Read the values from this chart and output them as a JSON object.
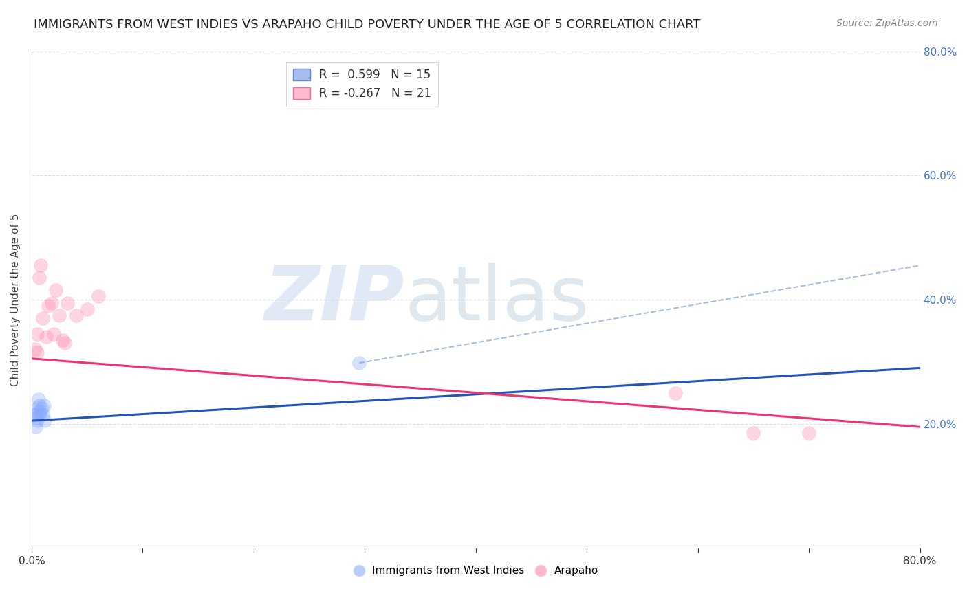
{
  "title": "IMMIGRANTS FROM WEST INDIES VS ARAPAHO CHILD POVERTY UNDER THE AGE OF 5 CORRELATION CHART",
  "source": "Source: ZipAtlas.com",
  "ylabel": "Child Poverty Under the Age of 5",
  "xlim": [
    0,
    0.8
  ],
  "ylim": [
    0,
    0.8
  ],
  "background_color": "#ffffff",
  "blue_scatter_x": [
    0.003,
    0.004,
    0.005,
    0.005,
    0.005,
    0.006,
    0.006,
    0.007,
    0.007,
    0.008,
    0.009,
    0.01,
    0.011,
    0.012,
    0.295
  ],
  "blue_scatter_y": [
    0.215,
    0.195,
    0.21,
    0.225,
    0.205,
    0.22,
    0.24,
    0.23,
    0.215,
    0.22,
    0.225,
    0.215,
    0.23,
    0.205,
    0.298
  ],
  "pink_scatter_x": [
    0.003,
    0.005,
    0.005,
    0.007,
    0.008,
    0.01,
    0.013,
    0.015,
    0.018,
    0.02,
    0.022,
    0.025,
    0.028,
    0.03,
    0.032,
    0.04,
    0.05,
    0.06,
    0.58,
    0.65,
    0.7
  ],
  "pink_scatter_y": [
    0.32,
    0.315,
    0.345,
    0.435,
    0.455,
    0.37,
    0.34,
    0.39,
    0.395,
    0.345,
    0.415,
    0.375,
    0.335,
    0.33,
    0.395,
    0.375,
    0.385,
    0.405,
    0.25,
    0.185,
    0.185
  ],
  "blue_line_x0": 0.0,
  "blue_line_x1": 0.8,
  "blue_line_y0": 0.205,
  "blue_line_y1": 0.29,
  "pink_line_x0": 0.0,
  "pink_line_x1": 0.8,
  "pink_line_y0": 0.305,
  "pink_line_y1": 0.195,
  "dashed_line_x0": 0.295,
  "dashed_line_x1": 0.8,
  "dashed_line_y0": 0.298,
  "dashed_line_y1": 0.455,
  "scatter_size": 200,
  "scatter_alpha": 0.35,
  "grid_color": "#dddddd",
  "title_fontsize": 13,
  "axis_label_fontsize": 11,
  "tick_fontsize": 11,
  "legend_fontsize": 12
}
